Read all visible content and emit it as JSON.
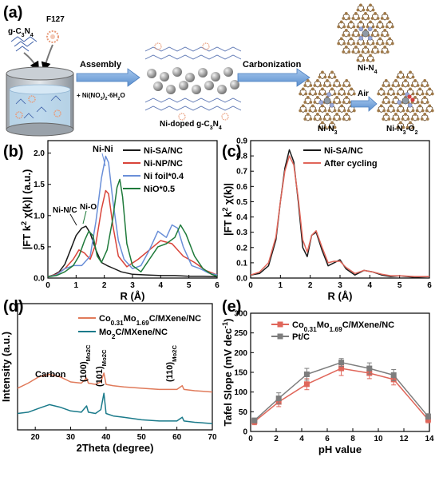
{
  "panel_a": {
    "label": "(a)",
    "gcn_label": "g-C3N4",
    "f127_label": "F127",
    "assembly_label": "Assembly",
    "additive_label": "+ Ni(NO3)2·6H2O",
    "product_label": "Ni-doped g-C3N4",
    "carbonization_label": "Carbonization",
    "ni_n4_label": "Ni-N4",
    "ni_n3_label": "Ni-N3",
    "air_label": "Air",
    "ni_n3_o2_label": "Ni-N3-O2"
  },
  "chart_data": [
    {
      "id": "b",
      "panel_label": "(b)",
      "type": "line",
      "xlabel": "R (Å)",
      "ylabel": "|FT k² χ(k)| (a.u.)",
      "xlim": [
        0,
        6
      ],
      "ylim": [
        0,
        2.2
      ],
      "xticks": [
        "0",
        "1",
        "2",
        "3",
        "4",
        "5",
        "6"
      ],
      "yticks": [
        "0.0",
        "0.5",
        "1.0",
        "1.5",
        "2.0"
      ],
      "legend_position": "top-right",
      "annotations": [
        "Ni-Ni",
        "Ni-N/C",
        "Ni-O"
      ],
      "series": [
        {
          "name": "Ni-SA/NC",
          "color": "#1a1a1a",
          "x": [
            0,
            0.2,
            0.4,
            0.6,
            0.8,
            1.0,
            1.2,
            1.35,
            1.5,
            1.7,
            1.9,
            2.1,
            2.3,
            2.6,
            3.0,
            3.5,
            4.0,
            4.5,
            5.0,
            5.5,
            6.0
          ],
          "y": [
            0.02,
            0.05,
            0.1,
            0.22,
            0.45,
            0.68,
            0.8,
            0.83,
            0.72,
            0.45,
            0.25,
            0.2,
            0.16,
            0.1,
            0.06,
            0.05,
            0.04,
            0.04,
            0.03,
            0.03,
            0.02
          ]
        },
        {
          "name": "Ni-NP/NC",
          "color": "#d9443a",
          "x": [
            0,
            0.3,
            0.6,
            0.9,
            1.1,
            1.3,
            1.5,
            1.7,
            1.9,
            2.05,
            2.15,
            2.3,
            2.5,
            2.8,
            3.2,
            3.6,
            4.0,
            4.4,
            4.8,
            5.2,
            5.6,
            6.0
          ],
          "y": [
            0.02,
            0.06,
            0.15,
            0.3,
            0.45,
            0.4,
            0.3,
            0.55,
            1.1,
            1.4,
            1.35,
            0.85,
            0.35,
            0.18,
            0.3,
            0.45,
            0.6,
            0.55,
            0.35,
            0.25,
            0.12,
            0.05
          ]
        },
        {
          "name": "Ni foil*0.4",
          "color": "#6a8fd8",
          "x": [
            0,
            0.3,
            0.6,
            0.9,
            1.2,
            1.5,
            1.7,
            1.9,
            2.05,
            2.15,
            2.3,
            2.5,
            2.7,
            3.0,
            3.3,
            3.6,
            3.9,
            4.2,
            4.4,
            4.6,
            4.8,
            5.1,
            5.4,
            5.7,
            6.0
          ],
          "y": [
            0.02,
            0.05,
            0.15,
            0.2,
            0.2,
            0.35,
            0.9,
            1.6,
            1.95,
            1.85,
            1.25,
            0.6,
            0.3,
            0.15,
            0.2,
            0.45,
            0.75,
            0.65,
            0.85,
            0.8,
            0.5,
            0.2,
            0.15,
            0.08,
            0.05
          ]
        },
        {
          "name": "NiO*0.5",
          "color": "#1e7a3a",
          "x": [
            0,
            0.3,
            0.6,
            0.9,
            1.1,
            1.3,
            1.45,
            1.6,
            1.75,
            1.9,
            2.1,
            2.3,
            2.45,
            2.55,
            2.65,
            2.8,
            3.0,
            3.3,
            3.6,
            3.9,
            4.2,
            4.5,
            4.7,
            4.9,
            5.2,
            5.5,
            5.8,
            6.0
          ],
          "y": [
            0.02,
            0.04,
            0.1,
            0.2,
            0.35,
            0.6,
            0.75,
            0.68,
            0.35,
            0.25,
            0.45,
            0.95,
            1.45,
            1.58,
            1.3,
            0.55,
            0.2,
            0.1,
            0.3,
            0.5,
            0.55,
            0.65,
            0.85,
            0.7,
            0.35,
            0.15,
            0.06,
            0.03
          ]
        }
      ]
    },
    {
      "id": "c",
      "panel_label": "(c)",
      "type": "line",
      "xlabel": "R (Å)",
      "ylabel": "|FT k² χ(k)|",
      "xlim": [
        0,
        6
      ],
      "ylim": [
        0,
        0.9
      ],
      "xticks": [
        "0",
        "1",
        "2",
        "3",
        "4",
        "5",
        "6"
      ],
      "yticks": [
        "0.0",
        "0.1",
        "0.2",
        "0.3",
        "0.4",
        "0.5",
        "0.6",
        "0.7",
        "0.8",
        "0.9"
      ],
      "legend_position": "top-right",
      "series": [
        {
          "name": "Ni-SA/NC",
          "color": "#1a1a1a",
          "x": [
            0,
            0.3,
            0.6,
            0.85,
            1.0,
            1.15,
            1.3,
            1.45,
            1.6,
            1.75,
            1.9,
            2.05,
            2.2,
            2.4,
            2.6,
            2.8,
            3.0,
            3.2,
            3.5,
            3.8,
            4.1,
            4.4,
            4.7,
            5.0,
            5.5,
            6.0
          ],
          "y": [
            0.02,
            0.03,
            0.08,
            0.25,
            0.5,
            0.72,
            0.84,
            0.76,
            0.5,
            0.2,
            0.14,
            0.28,
            0.3,
            0.18,
            0.08,
            0.1,
            0.12,
            0.06,
            0.02,
            0.05,
            0.04,
            0.02,
            0.01,
            0.015,
            0.005,
            0.01
          ]
        },
        {
          "name": "After cycling",
          "color": "#e0665a",
          "x": [
            0,
            0.3,
            0.6,
            0.85,
            1.0,
            1.15,
            1.3,
            1.45,
            1.6,
            1.75,
            1.9,
            2.05,
            2.2,
            2.4,
            2.6,
            2.8,
            3.0,
            3.2,
            3.5,
            3.8,
            4.1,
            4.4,
            4.7,
            5.0,
            5.5,
            6.0
          ],
          "y": [
            0.02,
            0.04,
            0.1,
            0.27,
            0.5,
            0.7,
            0.8,
            0.74,
            0.52,
            0.25,
            0.17,
            0.28,
            0.31,
            0.2,
            0.1,
            0.11,
            0.11,
            0.07,
            0.03,
            0.05,
            0.04,
            0.025,
            0.015,
            0.015,
            0.01,
            0.01
          ]
        }
      ]
    },
    {
      "id": "d",
      "panel_label": "(d)",
      "type": "line",
      "xlabel": "2Theta (degree)",
      "ylabel": "Intensity (a.u.)",
      "xlim": [
        15,
        70
      ],
      "ylim": [
        0,
        1
      ],
      "xticks": [
        "20",
        "30",
        "40",
        "50",
        "60",
        "70"
      ],
      "legend_position": "top-right",
      "annotations": [
        "Carbon",
        "(100)Mo2C",
        "(101)Mo2C",
        "(110)Mo2C"
      ],
      "series": [
        {
          "name": "Co0.31Mo1.69C/MXene/NC",
          "color": "#e07a5a",
          "x": [
            15,
            18,
            21,
            24,
            27,
            30,
            33,
            34.5,
            35,
            37,
            38.5,
            39.4,
            40,
            42,
            45,
            50,
            55,
            60,
            61.5,
            62,
            65,
            70
          ],
          "y": [
            0.33,
            0.37,
            0.42,
            0.44,
            0.42,
            0.38,
            0.37,
            0.41,
            0.37,
            0.36,
            0.38,
            0.45,
            0.36,
            0.35,
            0.34,
            0.33,
            0.32,
            0.32,
            0.35,
            0.32,
            0.31,
            0.3
          ]
        },
        {
          "name": "Mo2C/MXene/NC",
          "color": "#1a7a8a",
          "x": [
            15,
            18,
            21,
            24,
            27,
            30,
            33,
            34.5,
            35,
            37,
            38.5,
            39.4,
            40,
            42,
            45,
            50,
            55,
            60,
            61.5,
            62,
            65,
            70
          ],
          "y": [
            0.13,
            0.14,
            0.17,
            0.2,
            0.18,
            0.15,
            0.14,
            0.19,
            0.14,
            0.13,
            0.16,
            0.29,
            0.13,
            0.11,
            0.1,
            0.08,
            0.07,
            0.07,
            0.1,
            0.07,
            0.06,
            0.05
          ]
        }
      ]
    },
    {
      "id": "e",
      "panel_label": "(e)",
      "type": "line",
      "xlabel": "pH value",
      "ylabel": "Tafel Slope (mV dec⁻¹)",
      "xlim": [
        0,
        14
      ],
      "ylim": [
        0,
        300
      ],
      "xticks": [
        "0",
        "2",
        "4",
        "6",
        "8",
        "10",
        "12",
        "14"
      ],
      "yticks": [
        "0",
        "50",
        "100",
        "150",
        "200",
        "250",
        "300"
      ],
      "legend_position": "top-right",
      "series": [
        {
          "name": "Co0.31Mo1.69C/MXene/NC",
          "color": "#e0665a",
          "marker": "square",
          "x": [
            0.3,
            2.2,
            4.4,
            7.1,
            9.3,
            11.2,
            13.9
          ],
          "y": [
            25,
            75,
            120,
            160,
            148,
            132,
            30
          ],
          "err": [
            8,
            12,
            14,
            18,
            14,
            14,
            8
          ]
        },
        {
          "name": "Pt/C",
          "color": "#7d7d7d",
          "marker": "square",
          "x": [
            0.3,
            2.2,
            4.4,
            7.1,
            9.3,
            11.2,
            13.9
          ],
          "y": [
            28,
            84,
            145,
            175,
            160,
            143,
            38
          ],
          "err": [
            6,
            14,
            15,
            10,
            14,
            14,
            7
          ]
        }
      ]
    }
  ],
  "colors": {
    "arrow_blue": "#6fa3d8",
    "carbon_atom": "#a07a4a",
    "nitrogen_atom": "#9aa8d6",
    "nickel_atom": "#8f9aa6",
    "oxygen_atom": "#d04040",
    "f127_micelle": "#e89b7a",
    "beaker_water": "#b9d7ec"
  }
}
